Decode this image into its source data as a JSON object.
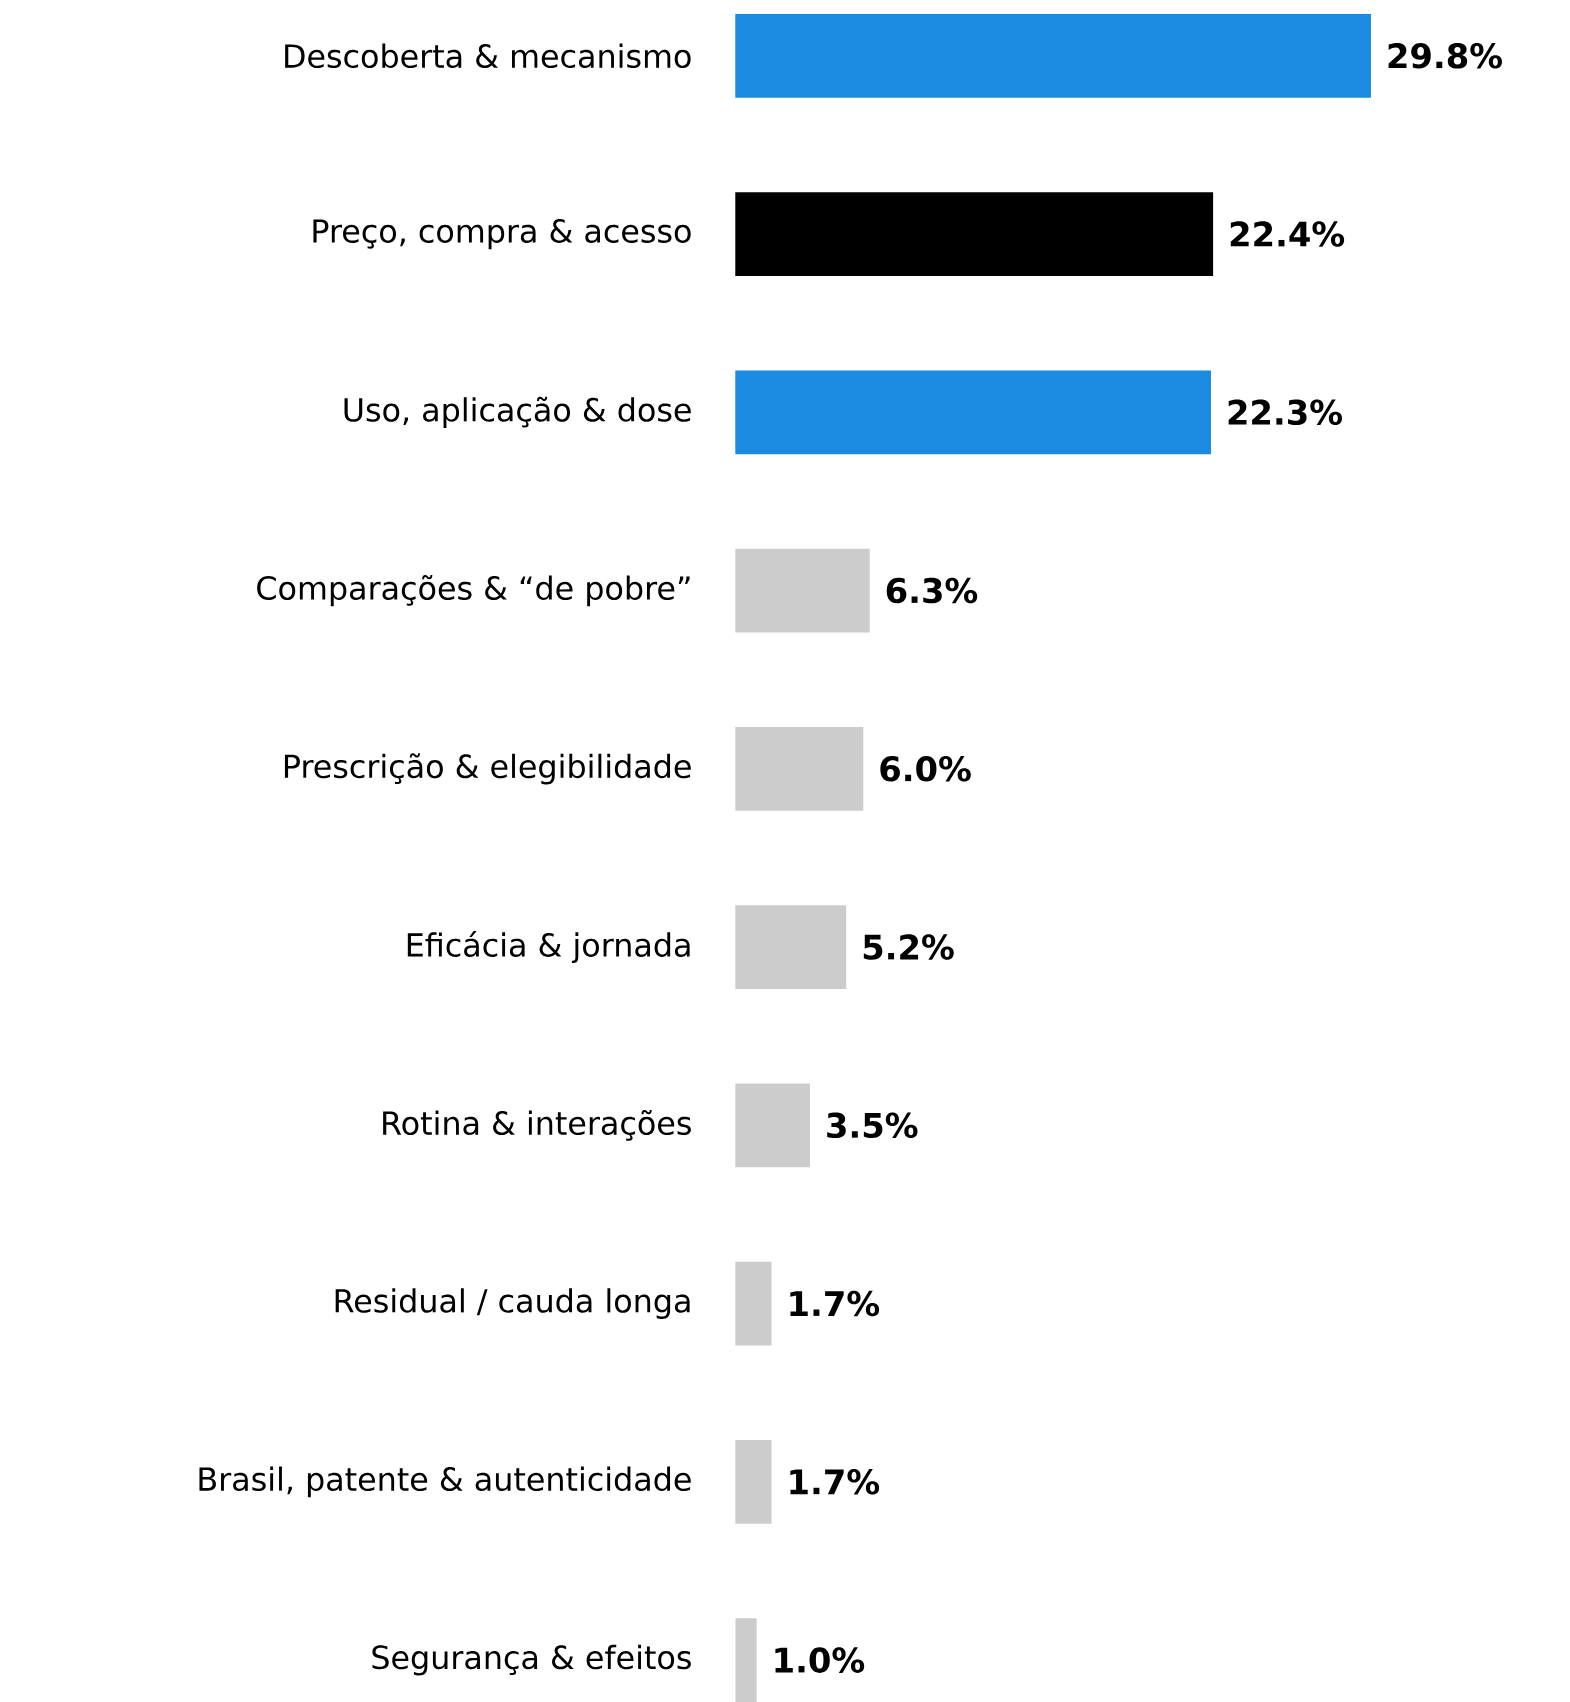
{
  "chart_data": {
    "type": "bar",
    "orientation": "horizontal",
    "categories": [
      "Descoberta & mecanismo",
      "Preço, compra & acesso",
      "Uso, aplicação & dose",
      "Comparações & “de pobre”",
      "Prescrição & elegibilidade",
      "Eficácia & jornada",
      "Rotina & interações",
      "Residual / cauda longa",
      "Brasil, patente & autenticidade",
      "Segurança & efeitos"
    ],
    "values": [
      29.8,
      22.4,
      22.3,
      6.3,
      6.0,
      5.2,
      3.5,
      1.7,
      1.7,
      1.0
    ],
    "value_labels": [
      "29.8%",
      "22.4%",
      "22.3%",
      "6.3%",
      "6.0%",
      "5.2%",
      "3.5%",
      "1.7%",
      "1.7%",
      "1.0%"
    ],
    "colors": [
      "#1a8be0",
      "#000000",
      "#1a8be0",
      "#cccccc",
      "#cccccc",
      "#cccccc",
      "#cccccc",
      "#cccccc",
      "#cccccc",
      "#cccccc"
    ]
  }
}
